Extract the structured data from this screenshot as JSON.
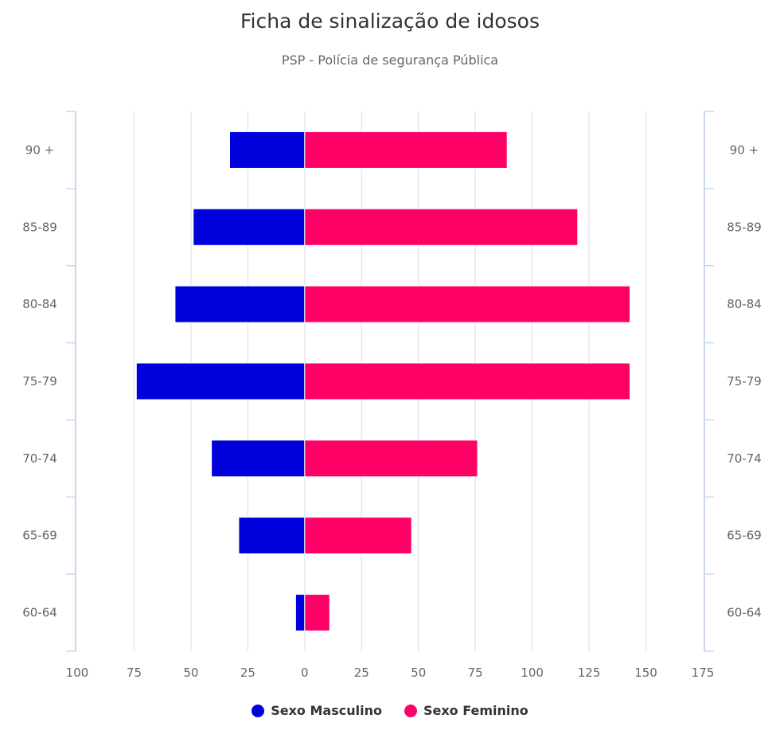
{
  "chart_data": {
    "type": "bar",
    "orientation": "horizontal-pyramid",
    "title": "Ficha de sinalização de idosos",
    "subtitle": "PSP - Polícia de segurança Pública",
    "categories": [
      "90 +",
      "85-89",
      "80-84",
      "75-79",
      "70-74",
      "65-69",
      "60-64"
    ],
    "series": [
      {
        "name": "Sexo Masculino",
        "color": "#0000dd",
        "values": [
          33,
          49,
          57,
          74,
          41,
          29,
          4
        ]
      },
      {
        "name": "Sexo Feminino",
        "color": "#ff0066",
        "values": [
          89,
          120,
          143,
          143,
          76,
          47,
          11
        ]
      }
    ],
    "xlim": [
      -100,
      175
    ],
    "x_ticks": [
      -100,
      -75,
      -50,
      -25,
      0,
      25,
      50,
      75,
      100,
      125,
      150,
      175
    ],
    "x_tick_labels": [
      "100",
      "75",
      "50",
      "25",
      "0",
      "25",
      "50",
      "75",
      "100",
      "125",
      "150",
      "175"
    ],
    "grid": true,
    "legend_position": "bottom"
  }
}
